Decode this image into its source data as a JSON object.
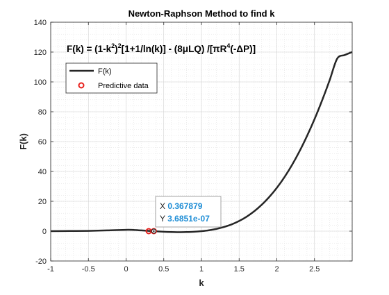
{
  "chart_data": {
    "type": "line",
    "title": "Newton-Raphson Method to find k",
    "xlabel": "k",
    "ylabel": "F(k)",
    "xlim": [
      -1,
      3
    ],
    "ylim": [
      -20,
      140
    ],
    "xticks": [
      -1,
      -0.5,
      0,
      0.5,
      1,
      1.5,
      2,
      2.5
    ],
    "xtick_labels": [
      "-1",
      "-0.5",
      "0",
      "0.5",
      "1",
      "1.5",
      "2",
      "2.5"
    ],
    "yticks": [
      -20,
      0,
      20,
      40,
      60,
      80,
      100,
      120,
      140
    ],
    "ytick_labels": [
      "-20",
      "0",
      "20",
      "40",
      "60",
      "80",
      "100",
      "120",
      "140"
    ],
    "grid": true,
    "minor_grid": true,
    "legend_position": "top-left",
    "annotation": {
      "base": "F(k) = (1-k",
      "sup1": "2",
      "mid": ")",
      "sup2": "2",
      "rest": "[1+1/ln(k)] - (8μLQ) /[πR",
      "sup3": "4",
      "end": "(-ΔP)]"
    },
    "series": [
      {
        "name": "F(k)",
        "kind": "line",
        "color": "#262626",
        "x": [
          -1.0,
          -0.75,
          -0.5,
          -0.25,
          0.0,
          0.1,
          0.2,
          0.3,
          0.368,
          0.5,
          0.6,
          0.7,
          0.8,
          0.9,
          1.0,
          1.1,
          1.2,
          1.3,
          1.4,
          1.5,
          1.6,
          1.7,
          1.8,
          1.9,
          2.0,
          2.1,
          2.2,
          2.3,
          2.4,
          2.5,
          2.6,
          2.7,
          2.8,
          2.9,
          3.0
        ],
        "y": [
          0.0,
          0.1,
          0.2,
          0.5,
          0.9,
          0.8,
          0.5,
          0.2,
          0.0,
          -0.4,
          -0.6,
          -0.7,
          -0.6,
          -0.4,
          0.0,
          0.6,
          1.5,
          2.8,
          4.5,
          6.8,
          9.7,
          13.3,
          17.7,
          22.9,
          29.0,
          36.1,
          44.2,
          53.4,
          63.7,
          75.0,
          87.5,
          101.0,
          115.5,
          118.0,
          120.0
        ]
      },
      {
        "name": "Predictive data",
        "kind": "marker",
        "color": "#e8201c",
        "x": [
          0.3,
          0.3679
        ],
        "y": [
          0.0,
          0.0
        ]
      }
    ],
    "datatip": {
      "x_prefix": "X",
      "x_value": "0.367879",
      "y_prefix": "Y",
      "y_value": "3.6851e-07",
      "value_color": "#1f8ed6"
    }
  }
}
